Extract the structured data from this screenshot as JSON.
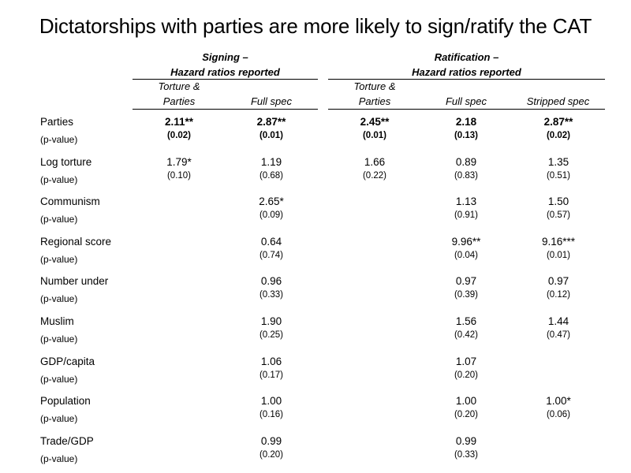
{
  "title": "Dictatorships with parties are more likely to sign/ratify the CAT",
  "groups": [
    {
      "line1": "Signing –",
      "line2": "Hazard ratios reported"
    },
    {
      "line1": "Ratification –",
      "line2": "Hazard ratios reported"
    }
  ],
  "columns": [
    {
      "line1": "Torture &",
      "line2": "Parties"
    },
    {
      "line1": "",
      "line2": "Full spec"
    },
    {
      "line1": "Torture &",
      "line2": "Parties"
    },
    {
      "line1": "",
      "line2": "Full spec"
    },
    {
      "line1": "",
      "line2": "Stripped spec"
    }
  ],
  "rows": [
    {
      "label": "Parties",
      "plabel": "(p-value)",
      "bold": true,
      "values": [
        "2.11**",
        "2.87**",
        "2.45**",
        "2.18",
        "2.87**"
      ],
      "pvalues": [
        "(0.02)",
        "(0.01)",
        "(0.01)",
        "(0.13)",
        "(0.02)"
      ]
    },
    {
      "label": "Log torture",
      "plabel": "(p-value)",
      "bold": false,
      "values": [
        "1.79*",
        "1.19",
        "1.66",
        "0.89",
        "1.35"
      ],
      "pvalues": [
        "(0.10)",
        "(0.68)",
        "(0.22)",
        "(0.83)",
        "(0.51)"
      ]
    },
    {
      "label": "Communism",
      "plabel": "(p-value)",
      "bold": false,
      "values": [
        "",
        "2.65*",
        "",
        "1.13",
        "1.50"
      ],
      "pvalues": [
        "",
        "(0.09)",
        "",
        "(0.91)",
        "(0.57)"
      ]
    },
    {
      "label": "Regional score",
      "plabel": "(p-value)",
      "bold": false,
      "values": [
        "",
        "0.64",
        "",
        "9.96**",
        "9.16***"
      ],
      "pvalues": [
        "",
        "(0.74)",
        "",
        "(0.04)",
        "(0.01)"
      ]
    },
    {
      "label": "Number under",
      "plabel": "(p-value)",
      "bold": false,
      "values": [
        "",
        "0.96",
        "",
        "0.97",
        "0.97"
      ],
      "pvalues": [
        "",
        "(0.33)",
        "",
        "(0.39)",
        "(0.12)"
      ]
    },
    {
      "label": "Muslim",
      "plabel": "(p-value)",
      "bold": false,
      "values": [
        "",
        "1.90",
        "",
        "1.56",
        "1.44"
      ],
      "pvalues": [
        "",
        "(0.25)",
        "",
        "(0.42)",
        "(0.47)"
      ]
    },
    {
      "label": "GDP/capita",
      "plabel": "(p-value)",
      "bold": false,
      "values": [
        "",
        "1.06",
        "",
        "1.07",
        ""
      ],
      "pvalues": [
        "",
        "(0.17)",
        "",
        "(0.20)",
        ""
      ]
    },
    {
      "label": "Population",
      "plabel": "(p-value)",
      "bold": false,
      "values": [
        "",
        "1.00",
        "",
        "1.00",
        "1.00*"
      ],
      "pvalues": [
        "",
        "(0.16)",
        "",
        "(0.20)",
        "(0.06)"
      ]
    },
    {
      "label": "Trade/GDP",
      "plabel": "(p-value)",
      "bold": false,
      "values": [
        "",
        "0.99",
        "",
        "0.99",
        ""
      ],
      "pvalues": [
        "",
        "(0.20)",
        "",
        "(0.33)",
        ""
      ]
    }
  ]
}
